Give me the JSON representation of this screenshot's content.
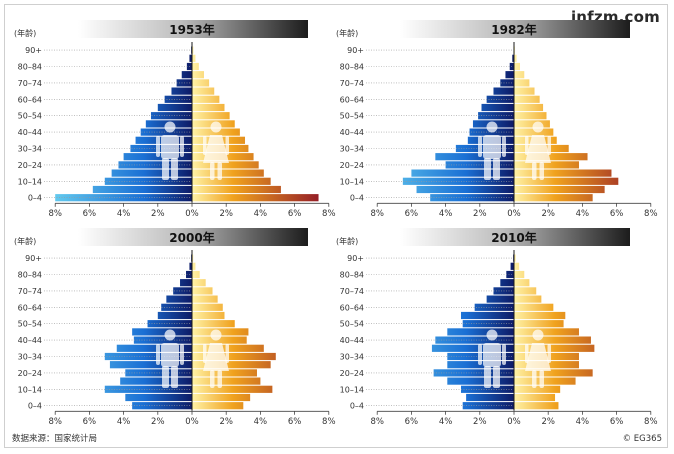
{
  "brand": "infzm.com",
  "source": "数据来源：国家统计局",
  "copyright": "© EG365",
  "colors": {
    "male_inner": "#0d1a66",
    "male_mid": "#1a6fd4",
    "male_outer": "#62c9ee",
    "female_inner": "#fff2a6",
    "female_mid": "#f0a21e",
    "female_outer": "#8a0f28",
    "band_dark": "#1c1c1c",
    "axis_label": "#333333"
  },
  "chart_data": [
    {
      "type": "bar",
      "title": "1953年",
      "ylabel": "(年龄)",
      "age_groups": [
        "0–4",
        "5–9",
        "10–14",
        "15–19",
        "20–24",
        "25–29",
        "30–34",
        "35–39",
        "40–44",
        "45–49",
        "50–54",
        "55–59",
        "60–64",
        "65–69",
        "70–74",
        "75–79",
        "80–84",
        "85–89",
        "90+"
      ],
      "age_tick_labels": [
        "0–4",
        "10–14",
        "20–24",
        "30–34",
        "40–44",
        "50–54",
        "60–64",
        "70–74",
        "80–84",
        "90+"
      ],
      "x_tick_labels": [
        "8%",
        "6%",
        "4%",
        "2%",
        "0%",
        "2%",
        "4%",
        "6%",
        "8%"
      ],
      "xlim": [
        -8,
        8
      ],
      "series": [
        {
          "name": "男",
          "values": [
            8.0,
            5.8,
            5.1,
            4.7,
            4.3,
            4.0,
            3.6,
            3.3,
            3.0,
            2.7,
            2.4,
            2.0,
            1.6,
            1.2,
            0.9,
            0.6,
            0.3,
            0.15,
            0.05
          ]
        },
        {
          "name": "女",
          "values": [
            7.4,
            5.2,
            4.6,
            4.2,
            3.9,
            3.6,
            3.3,
            3.1,
            2.8,
            2.5,
            2.2,
            1.9,
            1.6,
            1.3,
            1.0,
            0.7,
            0.4,
            0.2,
            0.08
          ]
        }
      ]
    },
    {
      "type": "bar",
      "title": "1982年",
      "ylabel": "(年龄)",
      "age_groups": [
        "0–4",
        "5–9",
        "10–14",
        "15–19",
        "20–24",
        "25–29",
        "30–34",
        "35–39",
        "40–44",
        "45–49",
        "50–54",
        "55–59",
        "60–64",
        "65–69",
        "70–74",
        "75–79",
        "80–84",
        "85–89",
        "90+"
      ],
      "age_tick_labels": [
        "0–4",
        "10–14",
        "20–24",
        "30–34",
        "40–44",
        "50–54",
        "60–64",
        "70–74",
        "80–84",
        "90+"
      ],
      "x_tick_labels": [
        "8%",
        "6%",
        "4%",
        "2%",
        "0%",
        "2%",
        "4%",
        "6%",
        "8%"
      ],
      "xlim": [
        -8,
        8
      ],
      "series": [
        {
          "name": "男",
          "values": [
            4.9,
            5.7,
            6.5,
            6.0,
            4.0,
            4.6,
            3.4,
            2.7,
            2.6,
            2.4,
            2.1,
            1.9,
            1.6,
            1.2,
            0.8,
            0.5,
            0.25,
            0.1,
            0.03
          ]
        },
        {
          "name": "女",
          "values": [
            4.6,
            5.3,
            6.1,
            5.7,
            3.8,
            4.3,
            3.2,
            2.5,
            2.3,
            2.1,
            1.9,
            1.7,
            1.5,
            1.2,
            0.9,
            0.6,
            0.35,
            0.15,
            0.05
          ]
        }
      ]
    },
    {
      "type": "bar",
      "title": "2000年",
      "ylabel": "(年龄)",
      "age_groups": [
        "0–4",
        "5–9",
        "10–14",
        "15–19",
        "20–24",
        "25–29",
        "30–34",
        "35–39",
        "40–44",
        "45–49",
        "50–54",
        "55–59",
        "60–64",
        "65–69",
        "70–74",
        "75–79",
        "80–84",
        "85–89",
        "90+"
      ],
      "age_tick_labels": [
        "0–4",
        "10–14",
        "20–24",
        "30–34",
        "40–44",
        "50–54",
        "60–64",
        "70–74",
        "80–84",
        "90+"
      ],
      "x_tick_labels": [
        "8%",
        "6%",
        "4%",
        "2%",
        "0%",
        "2%",
        "4%",
        "6%",
        "8%"
      ],
      "xlim": [
        -8,
        8
      ],
      "series": [
        {
          "name": "男",
          "values": [
            3.5,
            3.9,
            5.1,
            4.2,
            3.9,
            4.8,
            5.1,
            4.4,
            3.4,
            3.5,
            2.6,
            2.0,
            1.8,
            1.5,
            1.1,
            0.7,
            0.35,
            0.15,
            0.05
          ]
        },
        {
          "name": "女",
          "values": [
            3.0,
            3.4,
            4.7,
            4.0,
            3.8,
            4.6,
            4.9,
            4.2,
            3.2,
            3.3,
            2.5,
            1.9,
            1.8,
            1.5,
            1.2,
            0.8,
            0.45,
            0.2,
            0.07
          ]
        }
      ]
    },
    {
      "type": "bar",
      "title": "2010年",
      "ylabel": "(年龄)",
      "age_groups": [
        "0–4",
        "5–9",
        "10–14",
        "15–19",
        "20–24",
        "25–29",
        "30–34",
        "35–39",
        "40–44",
        "45–49",
        "50–54",
        "55–59",
        "60–64",
        "65–69",
        "70–74",
        "75–79",
        "80–84",
        "85–89",
        "90+"
      ],
      "age_tick_labels": [
        "0–4",
        "10–14",
        "20–24",
        "30–34",
        "40–44",
        "50–54",
        "60–64",
        "70–74",
        "80–84",
        "90+"
      ],
      "x_tick_labels": [
        "8%",
        "6%",
        "4%",
        "2%",
        "0%",
        "2%",
        "4%",
        "6%",
        "8%"
      ],
      "xlim": [
        -8,
        8
      ],
      "series": [
        {
          "name": "男",
          "values": [
            3.0,
            2.8,
            3.1,
            3.9,
            4.7,
            3.9,
            3.9,
            4.8,
            4.6,
            3.9,
            3.0,
            3.1,
            2.3,
            1.6,
            1.2,
            0.8,
            0.45,
            0.2,
            0.05
          ]
        },
        {
          "name": "女",
          "values": [
            2.6,
            2.4,
            2.7,
            3.6,
            4.6,
            3.8,
            3.8,
            4.7,
            4.5,
            3.8,
            2.9,
            3.0,
            2.3,
            1.6,
            1.3,
            0.9,
            0.6,
            0.3,
            0.1
          ]
        }
      ]
    }
  ]
}
